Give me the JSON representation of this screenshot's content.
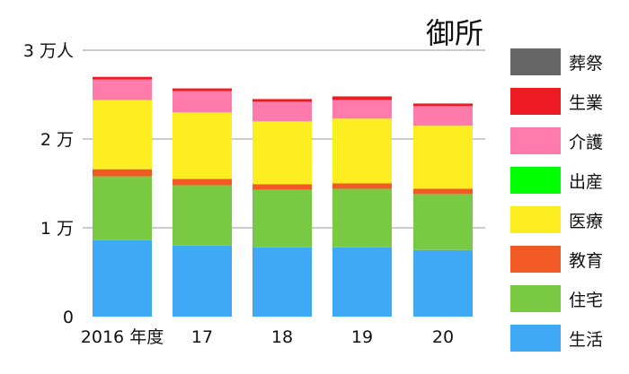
{
  "chart_data": {
    "type": "bar",
    "stacked": true,
    "title": "御所",
    "categories": [
      "2016 年度",
      "17",
      "18",
      "19",
      "20"
    ],
    "y_ticks": [
      {
        "value": 0,
        "label": "0"
      },
      {
        "value": 10000,
        "label": "1 万"
      },
      {
        "value": 20000,
        "label": "2 万"
      },
      {
        "value": 30000,
        "label": "3 万人"
      }
    ],
    "ylim": [
      0,
      30000
    ],
    "grid": true,
    "legend_position": "right",
    "series": [
      {
        "name": "生活",
        "color": "#3fa9f5",
        "values": [
          8600,
          8000,
          7800,
          7800,
          7500
        ]
      },
      {
        "name": "住宅",
        "color": "#7ac943",
        "values": [
          7200,
          6800,
          6500,
          6600,
          6300
        ]
      },
      {
        "name": "教育",
        "color": "#f15a24",
        "values": [
          800,
          700,
          600,
          600,
          600
        ]
      },
      {
        "name": "医療",
        "color": "#fcee21",
        "values": [
          7800,
          7500,
          7100,
          7300,
          7100
        ]
      },
      {
        "name": "出産",
        "color": "#00ff00",
        "values": [
          0,
          0,
          0,
          0,
          0
        ]
      },
      {
        "name": "介護",
        "color": "#ff7bac",
        "values": [
          2300,
          2400,
          2200,
          2100,
          2200
        ]
      },
      {
        "name": "生業",
        "color": "#ed1c24",
        "values": [
          300,
          300,
          300,
          400,
          300
        ]
      },
      {
        "name": "葬祭",
        "color": "#666666",
        "values": [
          0,
          0,
          0,
          0,
          0
        ]
      }
    ]
  }
}
